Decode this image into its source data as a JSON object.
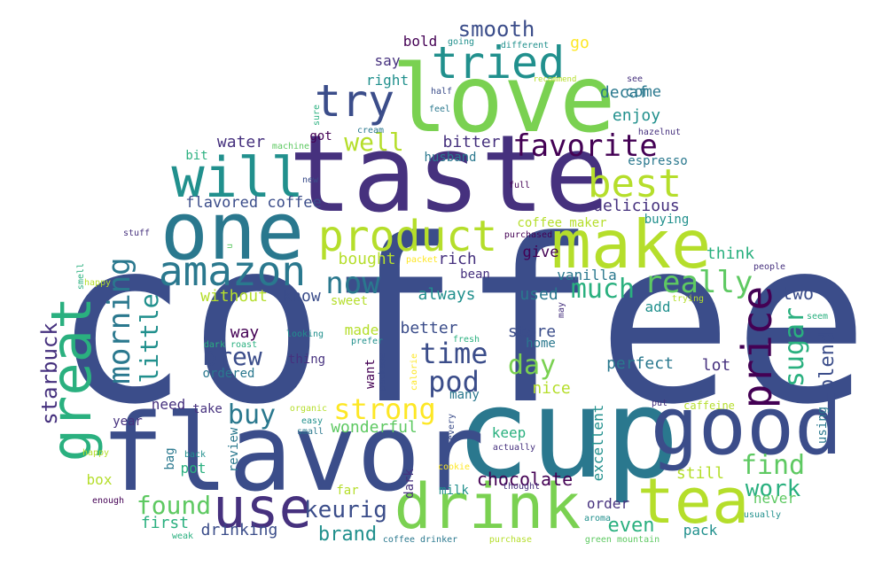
{
  "palette": {
    "navy": "#3b4d8a",
    "indigo": "#46317e",
    "purple": "#440154",
    "teal_dark": "#2a788e",
    "teal": "#21908d",
    "green_teal": "#2ab07f",
    "green": "#5ec962",
    "lime": "#7ad151",
    "yellow_green": "#b5de2b",
    "yellow": "#fde725"
  },
  "words": [
    {
      "text": "coffee",
      "color": "navy"
    },
    {
      "text": "cup",
      "color": "teal_dark"
    },
    {
      "text": "flavor",
      "color": "navy"
    },
    {
      "text": "taste",
      "color": "indigo"
    },
    {
      "text": "love",
      "color": "lime"
    },
    {
      "text": "one",
      "color": "teal_dark"
    },
    {
      "text": "good",
      "color": "navy"
    },
    {
      "text": "make",
      "color": "yellow_green"
    },
    {
      "text": "drink",
      "color": "lime"
    },
    {
      "text": "tea",
      "color": "yellow_green"
    },
    {
      "text": "use",
      "color": "indigo"
    },
    {
      "text": "great",
      "color": "green_teal"
    },
    {
      "text": "will",
      "color": "teal"
    },
    {
      "text": "tried",
      "color": "teal"
    },
    {
      "text": "try",
      "color": "navy"
    },
    {
      "text": "product",
      "color": "yellow_green"
    },
    {
      "text": "amazon",
      "color": "teal_dark"
    },
    {
      "text": "price",
      "color": "purple"
    },
    {
      "text": "best",
      "color": "yellow_green"
    },
    {
      "text": "favorite",
      "color": "purple"
    },
    {
      "text": "morning",
      "color": "teal_dark"
    },
    {
      "text": "little",
      "color": "teal"
    },
    {
      "text": "now",
      "color": "teal_dark"
    },
    {
      "text": "much",
      "color": "green_teal"
    },
    {
      "text": "really",
      "color": "green"
    },
    {
      "text": "time",
      "color": "navy"
    },
    {
      "text": "pod",
      "color": "navy"
    },
    {
      "text": "strong",
      "color": "yellow"
    },
    {
      "text": "day",
      "color": "lime"
    },
    {
      "text": "sugar",
      "color": "green_teal"
    },
    {
      "text": "buy",
      "color": "teal_dark"
    },
    {
      "text": "brew",
      "color": "navy"
    },
    {
      "text": "find",
      "color": "green"
    },
    {
      "text": "found",
      "color": "green"
    },
    {
      "text": "work",
      "color": "green_teal"
    },
    {
      "text": "keurig",
      "color": "navy"
    },
    {
      "text": "starbuck",
      "color": "indigo"
    },
    {
      "text": "well",
      "color": "yellow_green"
    },
    {
      "text": "smooth",
      "color": "navy"
    },
    {
      "text": "blend",
      "color": "navy"
    },
    {
      "text": "two",
      "color": "navy"
    },
    {
      "text": "brand",
      "color": "teal"
    },
    {
      "text": "chocolate",
      "color": "purple"
    },
    {
      "text": "even",
      "color": "green_teal"
    },
    {
      "text": "bold",
      "color": "purple"
    },
    {
      "text": "go",
      "color": "yellow"
    },
    {
      "text": "say",
      "color": "indigo"
    },
    {
      "text": "decaf",
      "color": "teal_dark"
    },
    {
      "text": "right",
      "color": "teal"
    },
    {
      "text": "come",
      "color": "teal_dark"
    },
    {
      "text": "enjoy",
      "color": "teal"
    },
    {
      "text": "bitter",
      "color": "indigo"
    },
    {
      "text": "husband",
      "color": "teal_dark"
    },
    {
      "text": "espresso",
      "color": "teal_dark"
    },
    {
      "text": "water",
      "color": "indigo"
    },
    {
      "text": "got",
      "color": "purple"
    },
    {
      "text": "bit",
      "color": "green_teal"
    },
    {
      "text": "flavored coffee",
      "color": "navy"
    },
    {
      "text": "delicious",
      "color": "indigo"
    },
    {
      "text": "coffee maker",
      "color": "yellow_green"
    },
    {
      "text": "buying",
      "color": "teal"
    },
    {
      "text": "think",
      "color": "green_teal"
    },
    {
      "text": "rich",
      "color": "indigo"
    },
    {
      "text": "bought",
      "color": "yellow_green"
    },
    {
      "text": "give",
      "color": "purple"
    },
    {
      "text": "bean",
      "color": "indigo"
    },
    {
      "text": "vanilla",
      "color": "teal_dark"
    },
    {
      "text": "without",
      "color": "yellow_green"
    },
    {
      "text": "know",
      "color": "navy"
    },
    {
      "text": "always",
      "color": "teal"
    },
    {
      "text": "used",
      "color": "teal_dark"
    },
    {
      "text": "add",
      "color": "teal"
    },
    {
      "text": "sweet",
      "color": "yellow_green"
    },
    {
      "text": "way",
      "color": "purple"
    },
    {
      "text": "made",
      "color": "yellow_green"
    },
    {
      "text": "better",
      "color": "navy"
    },
    {
      "text": "store",
      "color": "navy"
    },
    {
      "text": "home",
      "color": "teal_dark"
    },
    {
      "text": "thing",
      "color": "indigo"
    },
    {
      "text": "ordered",
      "color": "teal_dark"
    },
    {
      "text": "want",
      "color": "purple"
    },
    {
      "text": "perfect",
      "color": "teal_dark"
    },
    {
      "text": "lot",
      "color": "indigo"
    },
    {
      "text": "nice",
      "color": "yellow_green"
    },
    {
      "text": "many",
      "color": "teal_dark"
    },
    {
      "text": "need",
      "color": "indigo"
    },
    {
      "text": "take",
      "color": "indigo"
    },
    {
      "text": "year",
      "color": "indigo"
    },
    {
      "text": "wonderful",
      "color": "green"
    },
    {
      "text": "caffeine",
      "color": "yellow_green"
    },
    {
      "text": "keep",
      "color": "green_teal"
    },
    {
      "text": "excellent",
      "color": "teal"
    },
    {
      "text": "still",
      "color": "yellow_green"
    },
    {
      "text": "review",
      "color": "teal_dark"
    },
    {
      "text": "bag",
      "color": "teal_dark"
    },
    {
      "text": "pot",
      "color": "green_teal"
    },
    {
      "text": "box",
      "color": "yellow_green"
    },
    {
      "text": "dark",
      "color": "indigo"
    },
    {
      "text": "milk",
      "color": "teal"
    },
    {
      "text": "far",
      "color": "yellow_green"
    },
    {
      "text": "first",
      "color": "green_teal"
    },
    {
      "text": "drinking",
      "color": "navy"
    },
    {
      "text": "order",
      "color": "indigo"
    },
    {
      "text": "never",
      "color": "green"
    },
    {
      "text": "pack",
      "color": "teal"
    },
    {
      "text": "using",
      "color": "teal_dark"
    },
    {
      "text": "going",
      "color": "teal"
    },
    {
      "text": "different",
      "color": "teal"
    },
    {
      "text": "recommend",
      "color": "yellow_green"
    },
    {
      "text": "see",
      "color": "indigo"
    },
    {
      "text": "half",
      "color": "navy"
    },
    {
      "text": "feel",
      "color": "teal_dark"
    },
    {
      "text": "cream",
      "color": "teal_dark"
    },
    {
      "text": "sure",
      "color": "green_teal"
    },
    {
      "text": "machine",
      "color": "green"
    },
    {
      "text": "hazelnut",
      "color": "indigo"
    },
    {
      "text": "new",
      "color": "navy"
    },
    {
      "text": "full",
      "color": "purple"
    },
    {
      "text": "stuff",
      "color": "indigo"
    },
    {
      "text": "u",
      "color": "green"
    },
    {
      "text": "purchased",
      "color": "purple"
    },
    {
      "text": "packet",
      "color": "yellow"
    },
    {
      "text": "smell",
      "color": "green_teal"
    },
    {
      "text": "happy",
      "color": "yellow_green"
    },
    {
      "text": "people",
      "color": "indigo"
    },
    {
      "text": "trying",
      "color": "yellow_green"
    },
    {
      "text": "may",
      "color": "indigo"
    },
    {
      "text": "seem",
      "color": "green_teal"
    },
    {
      "text": "dark roast",
      "color": "green_teal"
    },
    {
      "text": "looking",
      "color": "teal"
    },
    {
      "text": "prefer",
      "color": "teal"
    },
    {
      "text": "fresh",
      "color": "green_teal"
    },
    {
      "text": "package",
      "color": "navy"
    },
    {
      "text": "calorie",
      "color": "yellow"
    },
    {
      "text": "organic",
      "color": "yellow_green"
    },
    {
      "text": "easy",
      "color": "teal"
    },
    {
      "text": "small",
      "color": "teal_dark"
    },
    {
      "text": "every",
      "color": "navy"
    },
    {
      "text": "put",
      "color": "indigo"
    },
    {
      "text": "back",
      "color": "teal"
    },
    {
      "text": "happy2",
      "color": "yellow_green"
    },
    {
      "text": "cookie",
      "color": "yellow"
    },
    {
      "text": "actually",
      "color": "indigo"
    },
    {
      "text": "thought",
      "color": "indigo"
    },
    {
      "text": "enough",
      "color": "purple"
    },
    {
      "text": "weak",
      "color": "green_teal"
    },
    {
      "text": "coffee drinker",
      "color": "teal_dark"
    },
    {
      "text": "purchase",
      "color": "yellow_green"
    },
    {
      "text": "green mountain",
      "color": "green"
    },
    {
      "text": "aroma",
      "color": "teal"
    },
    {
      "text": "usually",
      "color": "teal"
    }
  ]
}
